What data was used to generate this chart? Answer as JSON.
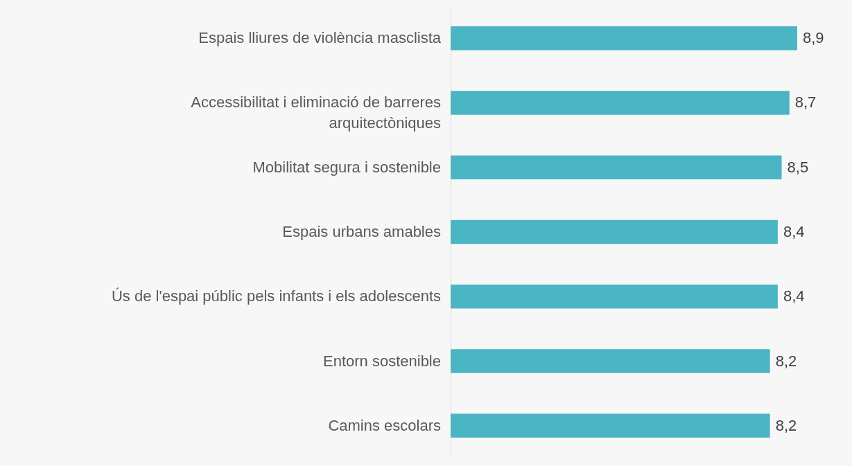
{
  "chart_data": {
    "type": "bar",
    "orientation": "horizontal",
    "categories": [
      "Espais lliures de violència masclista",
      "Accessibilitat i eliminació de barreres arquitectòniques",
      "Mobilitat segura i sostenible",
      "Espais urbans amables",
      "Ús de l'espai públic pels infants i els adolescents",
      "Entorn sostenible ",
      "Camins escolars"
    ],
    "values": [
      8.9,
      8.7,
      8.5,
      8.4,
      8.4,
      8.2,
      8.2
    ],
    "value_labels": [
      "8,9",
      "8,7",
      "8,5",
      "8,4",
      "8,4",
      "8,2",
      "8,2"
    ],
    "color": "#4bb5c4",
    "tick_labels": "y"
  }
}
